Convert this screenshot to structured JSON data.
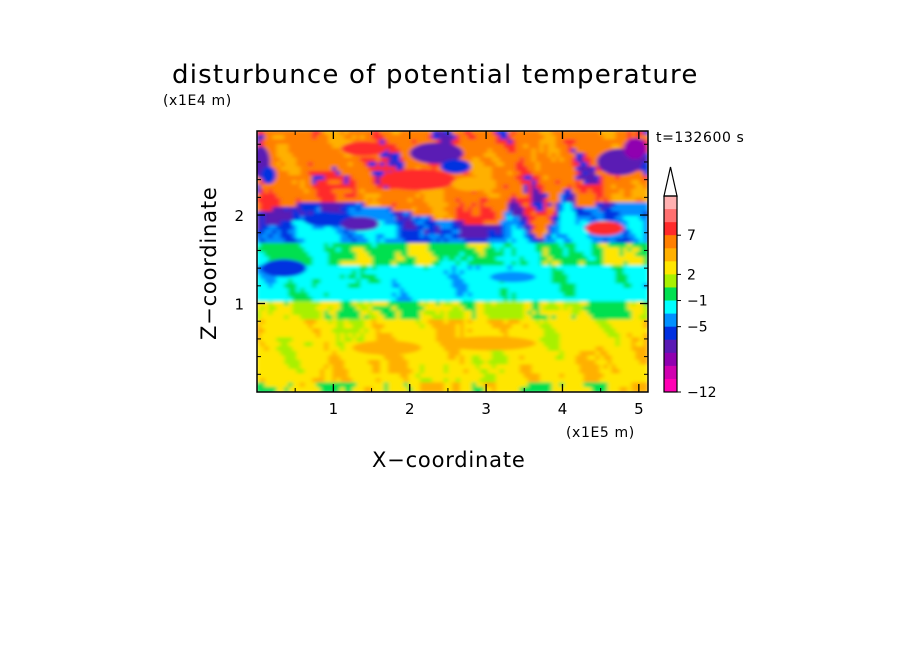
{
  "chart_data": {
    "type": "heatmap",
    "title": "disturbunce of potential temperature",
    "xlabel": "X−coordinate",
    "ylabel": "Z−coordinate",
    "x_unit": "(x1E5 m)",
    "y_unit": "(x1E4 m)",
    "annotation": "t=132600 s",
    "xlim": [
      0,
      5.12
    ],
    "ylim": [
      0,
      2.95
    ],
    "x_ticks": [
      1,
      2,
      3,
      4,
      5
    ],
    "x_tick_labels": [
      "1",
      "2",
      "3",
      "4",
      "5"
    ],
    "y_ticks": [
      1,
      2
    ],
    "y_tick_labels": [
      "1",
      "2"
    ],
    "colorbar": {
      "tick_labels": [
        "7",
        "2",
        "−1",
        "−5",
        "−12"
      ],
      "colors_top_to_bottom": [
        "#ffb0b0",
        "#ff7070",
        "#ff2a2a",
        "#ff7f00",
        "#ffb000",
        "#ffe600",
        "#a8f000",
        "#00e050",
        "#00ffff",
        "#0090ff",
        "#0030e0",
        "#5a1ab4",
        "#9000b0",
        "#d000b0",
        "#ff00b4"
      ],
      "extend_max_arrow": true
    },
    "field_bands": [
      {
        "z_range": [
          0,
          0.1
        ],
        "dominant": "green/yellow"
      },
      {
        "z_range": [
          0.1,
          0.8
        ],
        "dominant": "yellow/orange"
      },
      {
        "z_range": [
          0.8,
          1.0
        ],
        "dominant": "yellow/green"
      },
      {
        "z_range": [
          1.0,
          1.4
        ],
        "dominant": "cyan"
      },
      {
        "z_range": [
          1.4,
          1.7
        ],
        "dominant": "green/yellow"
      },
      {
        "z_range": [
          1.7,
          2.1
        ],
        "dominant": "blue/purple"
      },
      {
        "z_range": [
          2.1,
          2.95
        ],
        "dominant": "orange/red with purple patches"
      }
    ]
  }
}
